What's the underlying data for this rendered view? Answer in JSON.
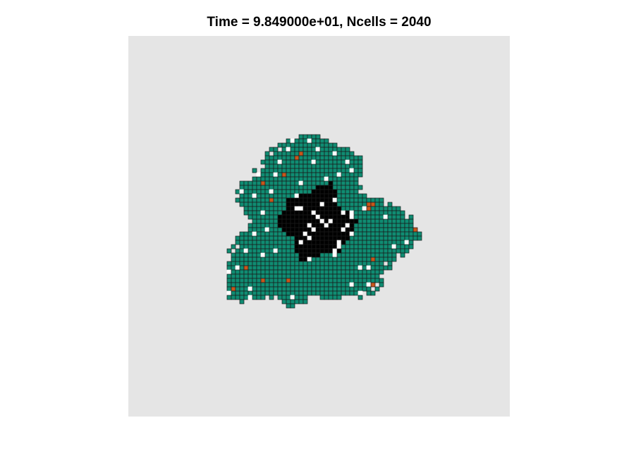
{
  "title": "Time = 9.849000e+01, Ncells = 2040",
  "colors": {
    "background": "#e5e5e5",
    "live_cell": "#0f8c72",
    "mutant_cell": "#c8561c",
    "necrotic_core": "#000000",
    "gap": "#ffffff",
    "cell_edge": "#1a1a1a"
  }
}
